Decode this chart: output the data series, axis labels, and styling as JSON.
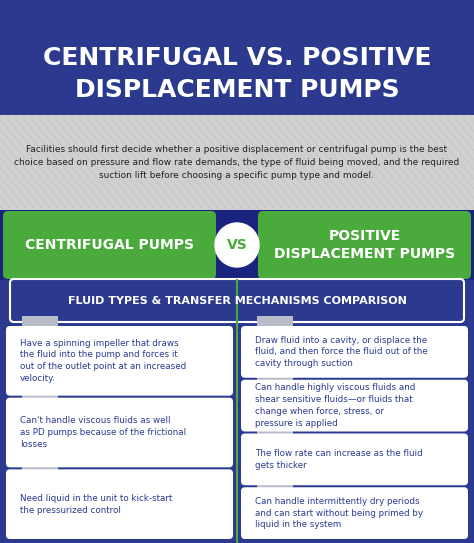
{
  "title_line1": "CENTRIFUGAL VS. POSITIVE",
  "title_line2": "DISPLACEMENT PUMPS",
  "title_bg": "#2b3a8f",
  "subtitle_line1": "Facilities should first decide whether a positive displacement or centrifugal pump is the best",
  "subtitle_line2": "choice based on pressure and flow rate demands, the type of fluid being moved, and the required",
  "subtitle_line3": "suction lift before choosing a specific pump type and model.",
  "subtitle_bg": "#d8d8d8",
  "left_label": "CENTRIFUGAL PUMPS",
  "right_label": "POSITIVE\nDISPLACEMENT PUMPS",
  "vs_label": "VS",
  "green_banner_color": "#4aaa3c",
  "dark_navy": "#1e2a6e",
  "main_bg": "#2b3a8f",
  "section_title": "FLUID TYPES & TRANSFER MECHANISMS COMPARISON",
  "section_title_bg": "#2b3a8f",
  "section_title_border": "#4aaa3c",
  "left_points": [
    "Have a spinning impeller that draws\nthe fluid into the pump and forces it\nout of the outlet point at an increased\nvelocity.",
    "Can't handle viscous fluids as well\nas PD pumps because of the frictional\nlosses",
    "Need liquid in the unit to kick-start\nthe pressurized control"
  ],
  "right_points": [
    "Draw fluid into a cavity, or displace the\nfluid, and then force the fluid out of the\ncavity through suction",
    "Can handle highly viscous fluids and\nshear sensitive fluids—or fluids that\nchange when force, stress, or\npressure is applied",
    "The flow rate can increase as the fluid\ngets thicker",
    "Can handle intermittently dry periods\nand can start without being primed by\nliquid in the system"
  ],
  "card_bg": "#ffffff",
  "card_text_color": "#2b3a8f",
  "arrow_color": "#b8bcc8",
  "divider_color": "#4aaa3c",
  "stripe_bg": "#c8c8c8"
}
